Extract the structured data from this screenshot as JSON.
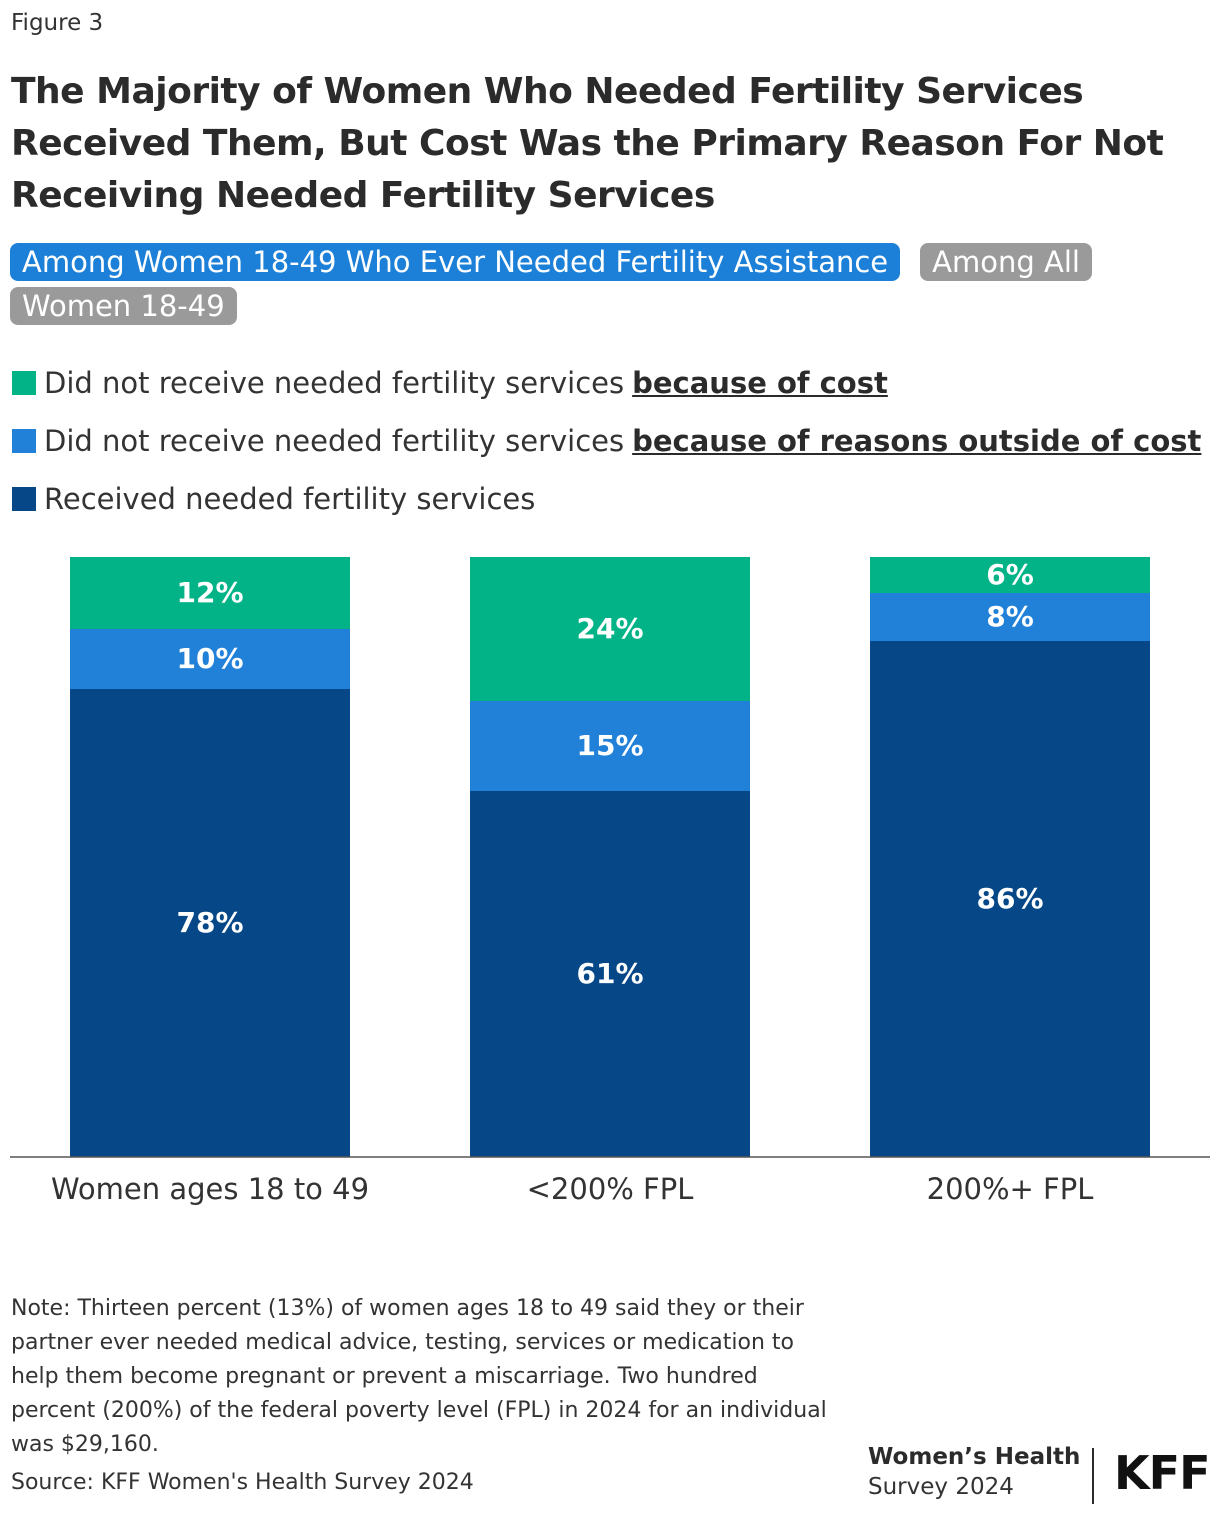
{
  "figure_label": "Figure 3",
  "tabs": [
    "Among Women 18-49 Who Ever Needed Fertility Assistance",
    "Among All Women 18-49"
  ],
  "chart_data": {
    "type": "stacked_bar",
    "title": "The Majority of Women Who Needed Fertility Services Received Them, But Cost Was the Primary Reason For Not Receiving Needed Fertility Services",
    "categories": [
      "Women ages 18 to 49",
      "<200% FPL",
      "200%+ FPL"
    ],
    "series": [
      {
        "name": [
          "Received needed fertility services"
        ],
        "color": "#064887",
        "values": [
          78,
          61,
          86
        ],
        "value_labels": [
          "78%",
          "61%",
          "86%"
        ]
      },
      {
        "name": [
          "Did not receive needed fertility services",
          "because of reasons outside of cost"
        ],
        "color": "#2180d8",
        "values": [
          10,
          15,
          8
        ],
        "value_labels": [
          "10%",
          "15%",
          "8%"
        ]
      },
      {
        "name": [
          "Did not receive needed fertility services",
          "because of cost"
        ],
        "color": "#03b388",
        "values": [
          12,
          24,
          6
        ],
        "value_labels": [
          "12%",
          "24%",
          "6%"
        ]
      }
    ]
  },
  "note": "Note: Thirteen percent (13%) of women ages 18 to 49 said they or their partner ever needed medical advice, testing, services or medication to help them become pregnant or prevent a miscarriage. Two hundred percent (200%) of the federal poverty level (FPL) in 2024 for an individual was $29,160.",
  "source": "Source: KFF Women's Health Survey 2024",
  "logo": {
    "title": "Women’s Health",
    "subtitle": "Survey 2024",
    "brand": "KFF"
  }
}
